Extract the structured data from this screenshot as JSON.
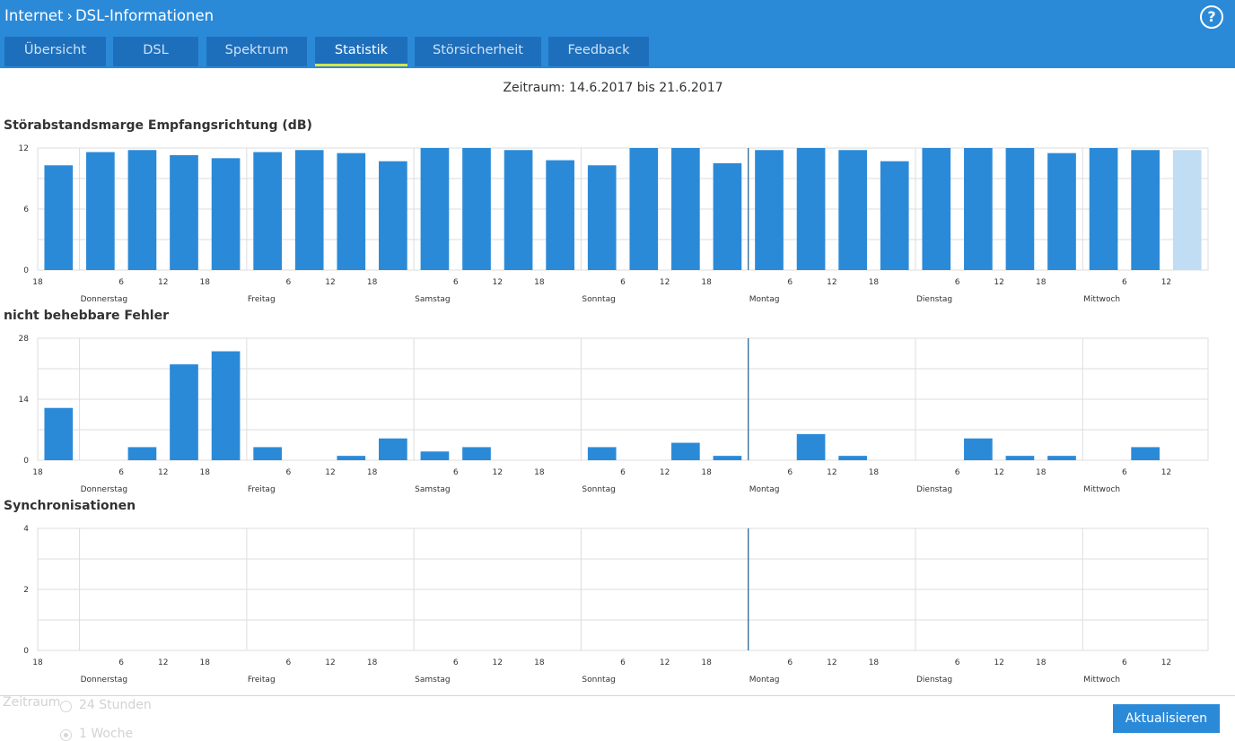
{
  "header": {
    "breadcrumb": [
      "Internet",
      "DSL-Informationen"
    ],
    "help_icon": "question-circle-icon",
    "help_label": "?"
  },
  "tabs": [
    {
      "label": "Übersicht",
      "active": false
    },
    {
      "label": "DSL",
      "active": false
    },
    {
      "label": "Spektrum",
      "active": false
    },
    {
      "label": "Statistik",
      "active": true
    },
    {
      "label": "Störsicherheit",
      "active": false
    },
    {
      "label": "Feedback",
      "active": false
    }
  ],
  "period_text": "Zeitraum: 14.6.2017 bis 21.6.2017",
  "colors": {
    "header": "#2b8ad8",
    "tab": "#1e6fbb",
    "tab_active_underline": "#d8e64a",
    "bar": "#2b8ad8",
    "bar_current": "#c0ddf3",
    "grid": "#dddddd",
    "now_line": "#1f5f94"
  },
  "sections": {
    "snr_title": "Störabstandsmarge Empfangsrichtung (dB)",
    "errors_title": "nicht behebbare Fehler",
    "sync_title": "Synchronisationen"
  },
  "chart_data": [
    {
      "type": "bar",
      "title": "Störabstandsmarge Empfangsrichtung (dB)",
      "ylim": [
        0,
        12
      ],
      "yticks": [
        0,
        6,
        12
      ],
      "x_ticks": [
        "18",
        "",
        "6",
        "12",
        "18",
        "",
        "6",
        "12",
        "18",
        "",
        "6",
        "12",
        "18",
        "",
        "6",
        "12",
        "18",
        "",
        "6",
        "12",
        "18",
        "",
        "6",
        "12",
        "18",
        "",
        "6",
        "12"
      ],
      "day_labels": [
        "Donnerstag",
        "Freitag",
        "Samstag",
        "Sonntag",
        "Montag",
        "Dienstag",
        "Mittwoch"
      ],
      "values": [
        10.3,
        11.6,
        11.8,
        11.3,
        11.0,
        11.6,
        11.8,
        11.5,
        10.7,
        12,
        12,
        11.8,
        10.8,
        10.3,
        12,
        12,
        10.5,
        11.8,
        12,
        11.8,
        10.7,
        12,
        12,
        12,
        11.5,
        12,
        11.8,
        11.8
      ],
      "current_index": 27,
      "grid": true
    },
    {
      "type": "bar",
      "title": "nicht behebbare Fehler",
      "ylim": [
        0,
        28
      ],
      "yticks": [
        0,
        14,
        28
      ],
      "x_ticks": [
        "18",
        "",
        "6",
        "12",
        "18",
        "",
        "6",
        "12",
        "18",
        "",
        "6",
        "12",
        "18",
        "",
        "6",
        "12",
        "18",
        "",
        "6",
        "12",
        "18",
        "",
        "6",
        "12",
        "18",
        "",
        "6",
        "12"
      ],
      "day_labels": [
        "Donnerstag",
        "Freitag",
        "Samstag",
        "Sonntag",
        "Montag",
        "Dienstag",
        "Mittwoch"
      ],
      "values": [
        12,
        0,
        3,
        22,
        25,
        3,
        0,
        1,
        5,
        2,
        3,
        0,
        0,
        3,
        0,
        4,
        1,
        0,
        6,
        1,
        0,
        0,
        5,
        1,
        1,
        0,
        3,
        0
      ],
      "current_index": 27,
      "grid": true
    },
    {
      "type": "bar",
      "title": "Synchronisationen",
      "ylim": [
        0,
        4
      ],
      "yticks": [
        0,
        2,
        4
      ],
      "x_ticks": [
        "18",
        "",
        "6",
        "12",
        "18",
        "",
        "6",
        "12",
        "18",
        "",
        "6",
        "12",
        "18",
        "",
        "6",
        "12",
        "18",
        "",
        "6",
        "12",
        "18",
        "",
        "6",
        "12",
        "18",
        "",
        "6",
        "12"
      ],
      "day_labels": [
        "Donnerstag",
        "Freitag",
        "Samstag",
        "Sonntag",
        "Montag",
        "Dienstag",
        "Mittwoch"
      ],
      "values": [
        0,
        0,
        0,
        0,
        0,
        0,
        0,
        0,
        0,
        0,
        0,
        0,
        0,
        0,
        0,
        0,
        0,
        0,
        0,
        0,
        0,
        0,
        0,
        0,
        0,
        0,
        0,
        0
      ],
      "current_index": 27,
      "grid": true
    }
  ],
  "footer": {
    "zeitraum_label": "Zeitraum",
    "options": [
      {
        "label": "24 Stunden",
        "checked": false
      },
      {
        "label": "1 Woche",
        "checked": true
      }
    ],
    "refresh_button": "Aktualisieren"
  }
}
